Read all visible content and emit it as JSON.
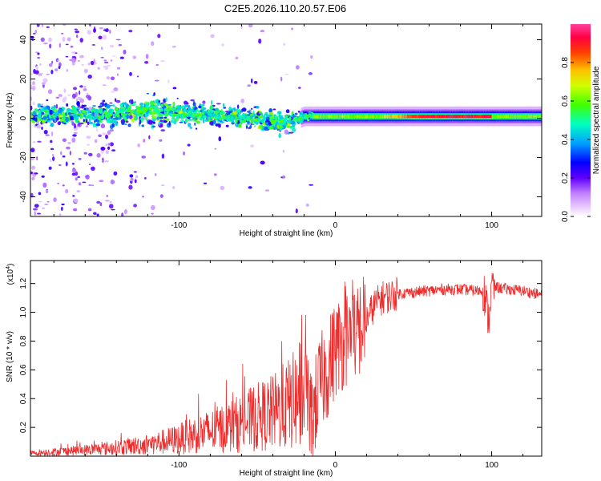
{
  "title": "C2E5.2026.110.20.57.E06",
  "chart_data": [
    {
      "type": "heatmap",
      "name": "spectrogram",
      "xlabel": "Height of straight line (km)",
      "ylabel": "Frequency (Hz)",
      "xlim": [
        -195,
        132
      ],
      "ylim": [
        -50,
        48
      ],
      "xticks": [
        -100,
        0,
        100
      ],
      "xtick_labels": [
        "-100",
        "0",
        "100"
      ],
      "yticks": [
        -40,
        -20,
        0,
        20,
        40
      ],
      "ytick_labels": [
        "-40",
        "-20",
        "0",
        "20",
        "40"
      ],
      "colorbar": {
        "label": "Normalized spectral amplitude",
        "range": [
          0,
          1
        ],
        "ticks": [
          0.0,
          0.2,
          0.4,
          0.6,
          0.8
        ],
        "tick_labels": [
          "0.0",
          "0.2",
          "0.4",
          "0.6",
          "0.8"
        ],
        "colors": [
          "#ffffff",
          "#e0b0ff",
          "#8000ff",
          "#0000ff",
          "#00c0ff",
          "#00ff80",
          "#80ff00",
          "#ffff00",
          "#ff8000",
          "#ff0000",
          "#ff40a0"
        ]
      },
      "band": [
        {
          "x": -190,
          "center": 1.5,
          "halfwidth": 7
        },
        {
          "x": -150,
          "center": 2,
          "halfwidth": 8
        },
        {
          "x": -120,
          "center": 4,
          "halfwidth": 10
        },
        {
          "x": -100,
          "center": 3,
          "halfwidth": 9
        },
        {
          "x": -70,
          "center": 1,
          "halfwidth": 8
        },
        {
          "x": -45,
          "center": -1,
          "halfwidth": 8
        },
        {
          "x": -30,
          "center": -2,
          "halfwidth": 9
        },
        {
          "x": -20,
          "center": 1,
          "halfwidth": 3
        },
        {
          "x": 0,
          "center": 1,
          "halfwidth": 2
        },
        {
          "x": 50,
          "center": 1,
          "halfwidth": 2
        },
        {
          "x": 100,
          "center": 1,
          "halfwidth": 2
        },
        {
          "x": 132,
          "center": 1,
          "halfwidth": 2
        }
      ]
    },
    {
      "type": "line",
      "name": "snr",
      "xlabel": "Height of straight line (km)",
      "ylabel": "SNR (10 * v/v)",
      "scale_label": "(x10",
      "scale_exp": "4",
      "scale_close": ")",
      "xlim": [
        -195,
        132
      ],
      "ylim": [
        0,
        1.36
      ],
      "xticks": [
        -100,
        0,
        100
      ],
      "xtick_labels": [
        "-100",
        "0",
        "100"
      ],
      "yticks": [
        0.2,
        0.4,
        0.6,
        0.8,
        1.0,
        1.2
      ],
      "ytick_labels": [
        "0.2",
        "0.4",
        "0.6",
        "0.8",
        "1.0",
        "1.2"
      ],
      "color": "#ee2c2c",
      "series": [
        {
          "name": "SNR",
          "x": [
            -195,
            -180,
            -165,
            -150,
            -140,
            -130,
            -120,
            -110,
            -100,
            -90,
            -80,
            -70,
            -60,
            -50,
            -40,
            -30,
            -25,
            -20,
            -15,
            -10,
            -5,
            0,
            5,
            10,
            15,
            20,
            25,
            30,
            40,
            50,
            60,
            70,
            80,
            90,
            95,
            98,
            100,
            105,
            110,
            120,
            132
          ],
          "y": [
            0.02,
            0.03,
            0.04,
            0.05,
            0.06,
            0.07,
            0.08,
            0.1,
            0.12,
            0.15,
            0.17,
            0.2,
            0.23,
            0.27,
            0.3,
            0.36,
            0.4,
            0.45,
            0.25,
            0.5,
            0.6,
            0.75,
            0.8,
            0.85,
            0.88,
            0.95,
            1.05,
            1.1,
            1.13,
            1.14,
            1.15,
            1.16,
            1.16,
            1.15,
            1.15,
            0.95,
            1.18,
            1.17,
            1.16,
            1.15,
            1.12
          ]
        }
      ]
    }
  ]
}
